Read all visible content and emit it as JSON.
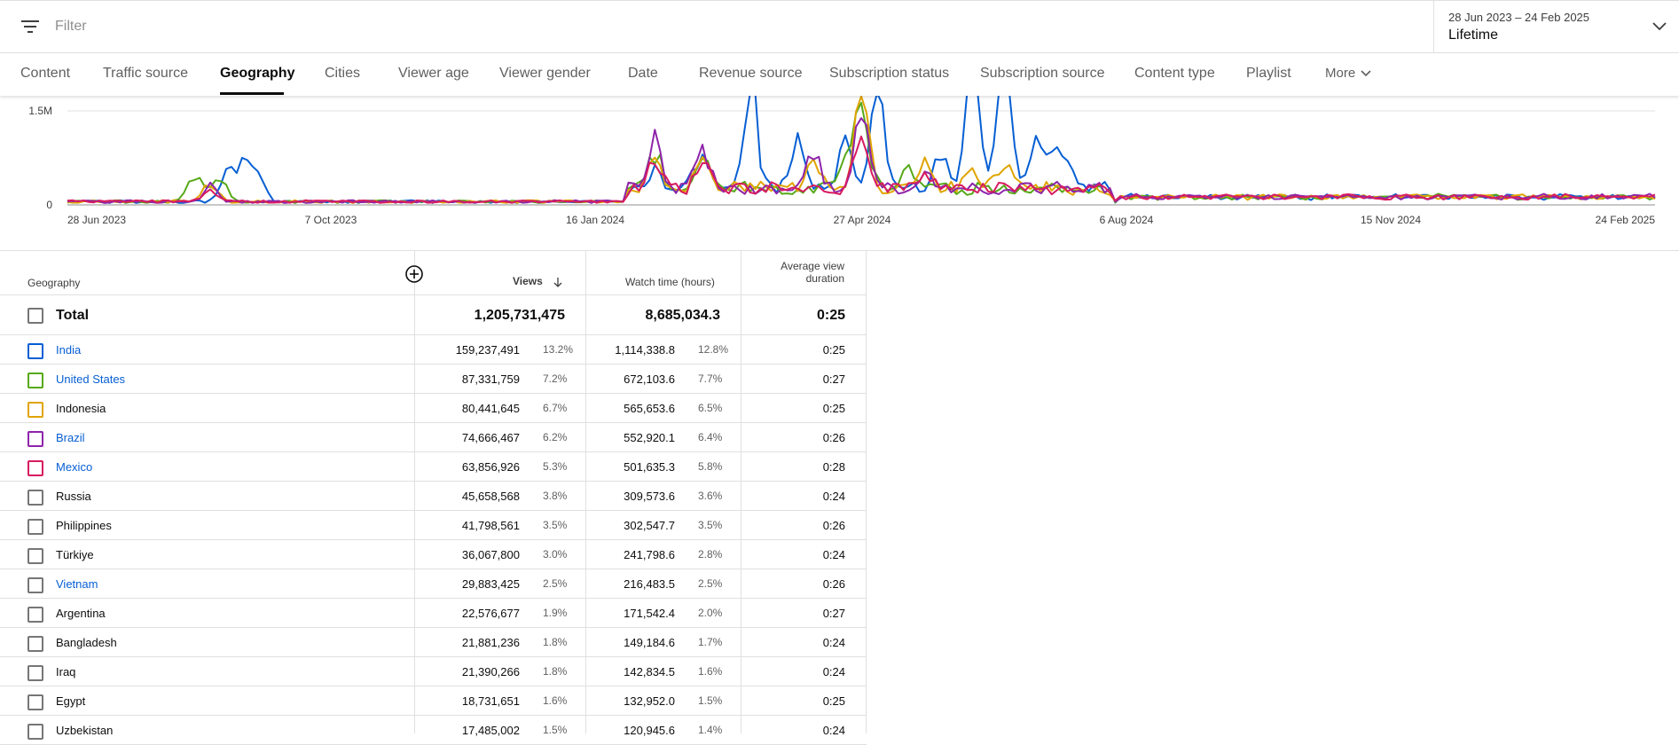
{
  "filter": {
    "placeholder": "Filter"
  },
  "date_range": {
    "range": "28 Jun 2023 – 24 Feb 2025",
    "period": "Lifetime"
  },
  "tabs": [
    {
      "label": "Content"
    },
    {
      "label": "Traffic source"
    },
    {
      "label": "Geography"
    },
    {
      "label": "Cities"
    },
    {
      "label": "Viewer age"
    },
    {
      "label": "Viewer gender"
    },
    {
      "label": "Date"
    },
    {
      "label": "Revenue source"
    },
    {
      "label": "Subscription status"
    },
    {
      "label": "Subscription source"
    },
    {
      "label": "Content type"
    },
    {
      "label": "Playlist"
    },
    {
      "label": "More"
    }
  ],
  "active_tab": "Geography",
  "chart_data": {
    "type": "line",
    "y_ticks": [
      "1.5M",
      "0"
    ],
    "ylim": [
      0,
      1500000
    ],
    "x_ticks": [
      "28 Jun 2023",
      "7 Oct 2023",
      "16 Jan 2024",
      "27 Apr 2024",
      "6 Aug 2024",
      "15 Nov 2024",
      "24 Feb 2025"
    ],
    "grid": true,
    "series": [
      {
        "name": "India",
        "color": "#065fd4"
      },
      {
        "name": "United States",
        "color": "#56a918"
      },
      {
        "name": "Indonesia",
        "color": "#e0a400"
      },
      {
        "name": "Brazil",
        "color": "#8e24aa"
      },
      {
        "name": "Mexico",
        "color": "#d81b60"
      }
    ]
  },
  "table": {
    "headers": {
      "geo": "Geography",
      "views": "Views",
      "watch": "Watch time (hours)",
      "avd_1": "Average view",
      "avd_2": "duration"
    },
    "total": {
      "label": "Total",
      "views": "1,205,731,475",
      "watch": "8,685,034.3",
      "avd": "0:25"
    },
    "rows": [
      {
        "name": "India",
        "link": true,
        "color": "#065fd4",
        "views": "159,237,491",
        "vp": "13.2%",
        "watch": "1,114,338.8",
        "wp": "12.8%",
        "avd": "0:25"
      },
      {
        "name": "United States",
        "link": true,
        "color": "#56a918",
        "views": "87,331,759",
        "vp": "7.2%",
        "watch": "672,103.6",
        "wp": "7.7%",
        "avd": "0:27"
      },
      {
        "name": "Indonesia",
        "link": false,
        "color": "#e0a400",
        "views": "80,441,645",
        "vp": "6.7%",
        "watch": "565,653.6",
        "wp": "6.5%",
        "avd": "0:25"
      },
      {
        "name": "Brazil",
        "link": true,
        "color": "#8e24aa",
        "views": "74,666,467",
        "vp": "6.2%",
        "watch": "552,920.1",
        "wp": "6.4%",
        "avd": "0:26"
      },
      {
        "name": "Mexico",
        "link": true,
        "color": "#d81b60",
        "views": "63,856,926",
        "vp": "5.3%",
        "watch": "501,635.3",
        "wp": "5.8%",
        "avd": "0:28"
      },
      {
        "name": "Russia",
        "link": false,
        "color": "",
        "views": "45,658,568",
        "vp": "3.8%",
        "watch": "309,573.6",
        "wp": "3.6%",
        "avd": "0:24"
      },
      {
        "name": "Philippines",
        "link": false,
        "color": "",
        "views": "41,798,561",
        "vp": "3.5%",
        "watch": "302,547.7",
        "wp": "3.5%",
        "avd": "0:26"
      },
      {
        "name": "Türkiye",
        "link": false,
        "color": "",
        "views": "36,067,800",
        "vp": "3.0%",
        "watch": "241,798.6",
        "wp": "2.8%",
        "avd": "0:24"
      },
      {
        "name": "Vietnam",
        "link": true,
        "color": "",
        "views": "29,883,425",
        "vp": "2.5%",
        "watch": "216,483.5",
        "wp": "2.5%",
        "avd": "0:26"
      },
      {
        "name": "Argentina",
        "link": false,
        "color": "",
        "views": "22,576,677",
        "vp": "1.9%",
        "watch": "171,542.4",
        "wp": "2.0%",
        "avd": "0:27"
      },
      {
        "name": "Bangladesh",
        "link": false,
        "color": "",
        "views": "21,881,236",
        "vp": "1.8%",
        "watch": "149,184.6",
        "wp": "1.7%",
        "avd": "0:24"
      },
      {
        "name": "Iraq",
        "link": false,
        "color": "",
        "views": "21,390,266",
        "vp": "1.8%",
        "watch": "142,834.5",
        "wp": "1.6%",
        "avd": "0:24"
      },
      {
        "name": "Egypt",
        "link": false,
        "color": "",
        "views": "18,731,651",
        "vp": "1.6%",
        "watch": "132,952.0",
        "wp": "1.5%",
        "avd": "0:25"
      },
      {
        "name": "Uzbekistan",
        "link": false,
        "color": "",
        "views": "17,485,002",
        "vp": "1.5%",
        "watch": "120,945.6",
        "wp": "1.4%",
        "avd": "0:24"
      }
    ]
  }
}
